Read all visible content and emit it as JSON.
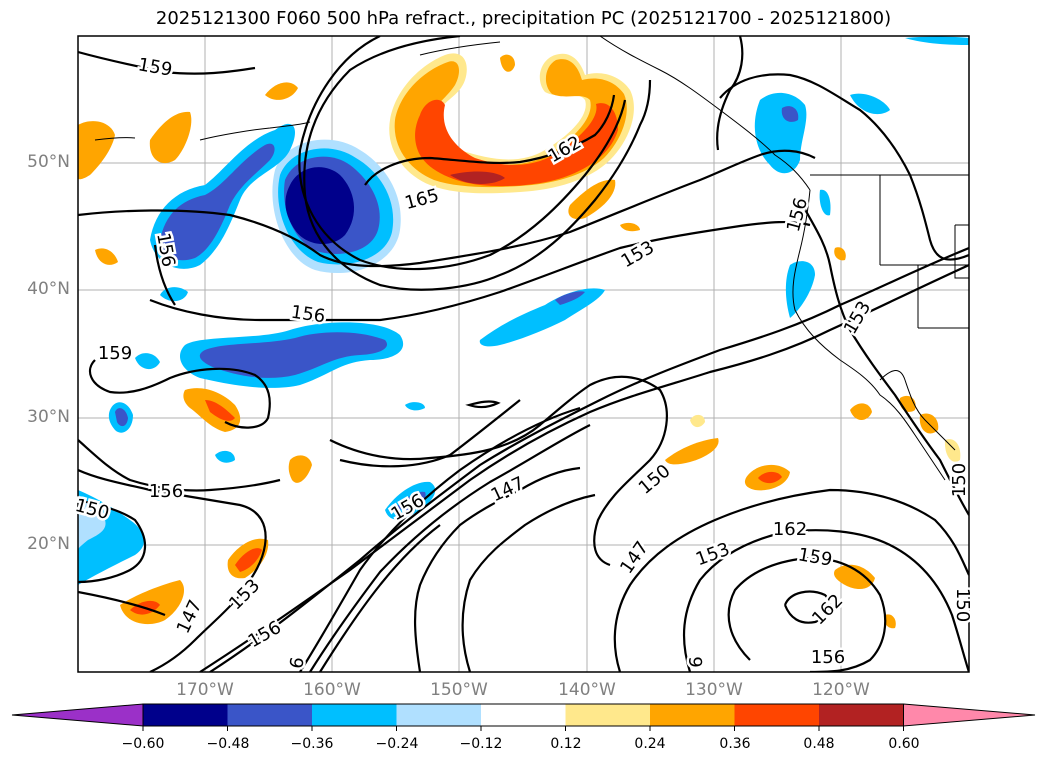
{
  "title": "2025121300 F060 500 hPa refract., precipitation PC (2025121700 - 2025121800)",
  "lat_labels": [
    "50°N",
    "40°N",
    "30°N",
    "20°N"
  ],
  "lon_labels": [
    "170°W",
    "160°W",
    "150°W",
    "140°W",
    "130°W",
    "120°W"
  ],
  "contour_labels": [
    "159",
    "165",
    "162",
    "153",
    "156",
    "156",
    "159",
    "153",
    "156",
    "147",
    "150",
    "150",
    "156",
    "147",
    "153",
    "159",
    "162",
    "153",
    "156",
    "150",
    "150",
    "147",
    "162",
    "6",
    "6",
    "156",
    "156"
  ],
  "colorbar": {
    "ticks": [
      "−0.60",
      "−0.48",
      "−0.36",
      "−0.24",
      "−0.12",
      "0.12",
      "0.24",
      "0.36",
      "0.48",
      "0.60"
    ],
    "colors": [
      "#9b30c8",
      "#00008b",
      "#3a55c8",
      "#00bfff",
      "#b0e0ff",
      "#ffffff",
      "#ffe88c",
      "#ffa500",
      "#ff4500",
      "#b22222",
      "#ff88aa",
      "#ff88aa"
    ]
  },
  "colors": {
    "dark_blue": "#00008b",
    "mid_blue": "#3a55c8",
    "light_blue": "#00bfff",
    "pale_blue": "#b0e0ff",
    "pale_yellow": "#ffe88c",
    "orange": "#ffa500",
    "red_orange": "#ff4500",
    "dark_red": "#b22222"
  }
}
